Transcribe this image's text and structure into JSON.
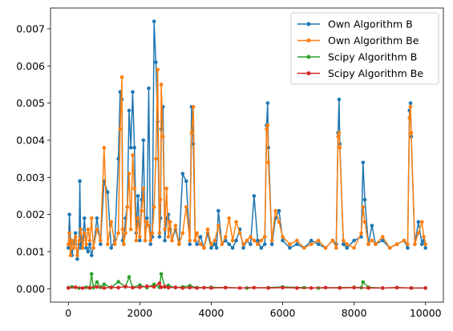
{
  "chart_data": {
    "type": "line",
    "title": "",
    "xlabel": "",
    "ylabel": "",
    "xlim": [
      -500,
      10500
    ],
    "ylim": [
      -0.00036,
      0.00756
    ],
    "x_ticks": [
      {
        "value": 0,
        "label": "0"
      },
      {
        "value": 2000,
        "label": "2000"
      },
      {
        "value": 4000,
        "label": "4000"
      },
      {
        "value": 6000,
        "label": "6000"
      },
      {
        "value": 8000,
        "label": "8000"
      },
      {
        "value": 10000,
        "label": "10000"
      }
    ],
    "y_ticks": [
      {
        "value": 0.0,
        "label": "0.000"
      },
      {
        "value": 0.001,
        "label": "0.001"
      },
      {
        "value": 0.002,
        "label": "0.002"
      },
      {
        "value": 0.003,
        "label": "0.003"
      },
      {
        "value": 0.004,
        "label": "0.004"
      },
      {
        "value": 0.005,
        "label": "0.005"
      },
      {
        "value": 0.006,
        "label": "0.006"
      },
      {
        "value": 0.007,
        "label": "0.007"
      }
    ],
    "grid": false,
    "legend": {
      "position": "top-right"
    },
    "series": [
      {
        "name": "Own Algorithm B",
        "color": "#1f77b4",
        "x": [
          0,
          30,
          60,
          100,
          150,
          200,
          250,
          300,
          320,
          350,
          400,
          450,
          500,
          550,
          600,
          650,
          700,
          800,
          900,
          1000,
          1100,
          1200,
          1300,
          1400,
          1450,
          1500,
          1520,
          1550,
          1600,
          1650,
          1700,
          1750,
          1800,
          1850,
          1900,
          1950,
          2000,
          2050,
          2100,
          2150,
          2200,
          2250,
          2300,
          2350,
          2400,
          2450,
          2500,
          2550,
          2580,
          2600,
          2650,
          2700,
          2750,
          2800,
          2850,
          2900,
          3000,
          3100,
          3200,
          3300,
          3400,
          3450,
          3500,
          3550,
          3600,
          3700,
          3800,
          3900,
          4000,
          4100,
          4150,
          4200,
          4300,
          4400,
          4500,
          4600,
          4700,
          4800,
          4900,
          5000,
          5100,
          5200,
          5300,
          5400,
          5500,
          5550,
          5580,
          5600,
          5700,
          5800,
          5900,
          6000,
          6200,
          6400,
          6600,
          6800,
          7000,
          7200,
          7400,
          7500,
          7550,
          7580,
          7600,
          7700,
          7800,
          8000,
          8200,
          8250,
          8300,
          8400,
          8500,
          8600,
          8800,
          9000,
          9200,
          9400,
          9500,
          9550,
          9580,
          9600,
          9700,
          9800,
          9900,
          9950,
          10000
        ],
        "y": [
          0.0011,
          0.002,
          0.0013,
          0.0009,
          0.0012,
          0.0015,
          0.0008,
          0.0012,
          0.0029,
          0.0011,
          0.0013,
          0.0019,
          0.0011,
          0.001,
          0.0012,
          0.0009,
          0.0011,
          0.0019,
          0.0012,
          0.0029,
          0.0026,
          0.0011,
          0.0013,
          0.0035,
          0.0053,
          0.0051,
          0.0013,
          0.0012,
          0.0019,
          0.0022,
          0.0048,
          0.0038,
          0.0053,
          0.0038,
          0.0015,
          0.0025,
          0.0013,
          0.0024,
          0.004,
          0.0013,
          0.0019,
          0.0054,
          0.0012,
          0.0014,
          0.0072,
          0.0061,
          0.0045,
          0.0014,
          0.0019,
          0.0043,
          0.0049,
          0.0013,
          0.0019,
          0.002,
          0.0016,
          0.0013,
          0.0016,
          0.0012,
          0.0031,
          0.0029,
          0.0012,
          0.0049,
          0.0039,
          0.0013,
          0.0012,
          0.0014,
          0.0011,
          0.0015,
          0.0011,
          0.0012,
          0.0011,
          0.0021,
          0.0012,
          0.0013,
          0.0012,
          0.0011,
          0.0013,
          0.0016,
          0.0011,
          0.0013,
          0.0012,
          0.0025,
          0.0013,
          0.0011,
          0.0012,
          0.0044,
          0.005,
          0.0038,
          0.0012,
          0.0019,
          0.0021,
          0.0013,
          0.0011,
          0.0012,
          0.0011,
          0.0013,
          0.0012,
          0.0011,
          0.0013,
          0.0012,
          0.0042,
          0.0051,
          0.0039,
          0.0012,
          0.0011,
          0.0013,
          0.0014,
          0.0034,
          0.0024,
          0.0012,
          0.0017,
          0.0012,
          0.0013,
          0.0011,
          0.0012,
          0.0013,
          0.0011,
          0.0048,
          0.005,
          0.0041,
          0.0012,
          0.0018,
          0.0012,
          0.0013,
          0.0011
        ]
      },
      {
        "name": "Own Algorithm Be",
        "color": "#ff7f0e",
        "x": [
          0,
          30,
          60,
          100,
          150,
          200,
          250,
          300,
          350,
          400,
          450,
          500,
          550,
          600,
          650,
          700,
          800,
          900,
          1000,
          1100,
          1200,
          1300,
          1400,
          1450,
          1500,
          1520,
          1550,
          1600,
          1650,
          1700,
          1750,
          1800,
          1850,
          1900,
          1950,
          2000,
          2050,
          2100,
          2150,
          2200,
          2250,
          2300,
          2350,
          2400,
          2450,
          2500,
          2550,
          2580,
          2600,
          2650,
          2700,
          2750,
          2800,
          2850,
          2900,
          3000,
          3100,
          3200,
          3300,
          3400,
          3450,
          3500,
          3550,
          3600,
          3700,
          3800,
          3900,
          4000,
          4100,
          4200,
          4300,
          4400,
          4500,
          4600,
          4700,
          4800,
          4900,
          5000,
          5100,
          5200,
          5300,
          5400,
          5500,
          5550,
          5580,
          5600,
          5700,
          5800,
          5900,
          6000,
          6200,
          6400,
          6600,
          6800,
          7000,
          7200,
          7400,
          7500,
          7550,
          7580,
          7600,
          7700,
          7800,
          8000,
          8200,
          8250,
          8300,
          8400,
          8500,
          8600,
          8800,
          9000,
          9200,
          9400,
          9500,
          9550,
          9580,
          9600,
          9700,
          9800,
          9900,
          9950,
          10000
        ],
        "y": [
          0.0012,
          0.0015,
          0.0009,
          0.0013,
          0.0011,
          0.0014,
          0.0009,
          0.0013,
          0.0016,
          0.0011,
          0.0015,
          0.0012,
          0.0016,
          0.0013,
          0.0019,
          0.0011,
          0.0016,
          0.0013,
          0.0038,
          0.0012,
          0.0018,
          0.0012,
          0.0015,
          0.0043,
          0.0057,
          0.0016,
          0.0012,
          0.0015,
          0.0022,
          0.0031,
          0.0016,
          0.0036,
          0.0027,
          0.0013,
          0.0019,
          0.0014,
          0.0021,
          0.0027,
          0.0013,
          0.0018,
          0.0017,
          0.0013,
          0.0015,
          0.0022,
          0.0035,
          0.0059,
          0.0015,
          0.0024,
          0.0055,
          0.0041,
          0.0016,
          0.0027,
          0.0014,
          0.0018,
          0.0013,
          0.0017,
          0.0012,
          0.0015,
          0.0022,
          0.0013,
          0.0042,
          0.0049,
          0.0013,
          0.0015,
          0.0012,
          0.0011,
          0.0016,
          0.0012,
          0.0013,
          0.0017,
          0.0012,
          0.0014,
          0.0019,
          0.0013,
          0.0018,
          0.0015,
          0.0012,
          0.0013,
          0.0014,
          0.0013,
          0.0012,
          0.0013,
          0.0014,
          0.0043,
          0.0044,
          0.0034,
          0.0013,
          0.0021,
          0.0018,
          0.0014,
          0.0012,
          0.0013,
          0.0011,
          0.0012,
          0.0013,
          0.0011,
          0.0013,
          0.0011,
          0.0041,
          0.0042,
          0.0038,
          0.0013,
          0.0012,
          0.0011,
          0.0015,
          0.0022,
          0.0018,
          0.0012,
          0.0013,
          0.0012,
          0.0014,
          0.0011,
          0.0012,
          0.0013,
          0.0012,
          0.0046,
          0.0049,
          0.0042,
          0.0012,
          0.0015,
          0.0018,
          0.0014,
          0.0012
        ]
      },
      {
        "name": "Scipy Algorithm B",
        "color": "#2ca02c",
        "x": [
          0,
          100,
          300,
          500,
          600,
          650,
          700,
          800,
          900,
          1000,
          1200,
          1400,
          1600,
          1700,
          1800,
          2000,
          2200,
          2400,
          2550,
          2600,
          2700,
          2800,
          3000,
          3200,
          3400,
          3600,
          4000,
          4400,
          5000,
          5600,
          6000,
          6600,
          7000,
          7600,
          8000,
          8200,
          8250,
          8400,
          8800,
          9200,
          9600,
          10000
        ],
        "y": [
          3e-05,
          5e-05,
          2e-05,
          4e-05,
          2e-05,
          0.0004,
          3e-05,
          0.00018,
          4e-05,
          0.00012,
          3e-05,
          0.00019,
          5e-05,
          0.00032,
          4e-05,
          0.0001,
          3e-05,
          0.00012,
          4e-05,
          0.0004,
          5e-05,
          9e-05,
          3e-05,
          5e-05,
          8e-05,
          3e-05,
          4e-05,
          3e-05,
          2e-05,
          3e-05,
          5e-05,
          3e-05,
          2e-05,
          3e-05,
          4e-05,
          3e-05,
          0.00018,
          4e-05,
          2e-05,
          3e-05,
          2e-05,
          2e-05
        ]
      },
      {
        "name": "Scipy Algorithm Be",
        "color": "#d62728",
        "x": [
          0,
          200,
          400,
          600,
          800,
          1000,
          1200,
          1400,
          1600,
          1800,
          2000,
          2200,
          2400,
          2550,
          2600,
          2700,
          2800,
          3000,
          3200,
          3400,
          3600,
          3800,
          4000,
          4400,
          4800,
          5200,
          5600,
          6000,
          6400,
          6800,
          7200,
          7600,
          8000,
          8400,
          8800,
          9200,
          9600,
          10000
        ],
        "y": [
          2e-05,
          4e-05,
          2e-05,
          3e-05,
          5e-05,
          2e-05,
          4e-05,
          3e-05,
          6e-05,
          3e-05,
          4e-05,
          7e-05,
          5e-05,
          0.00015,
          4e-05,
          6e-05,
          3e-05,
          4e-05,
          2e-05,
          3e-05,
          2e-05,
          3e-05,
          2e-05,
          3e-05,
          2e-05,
          3e-05,
          2e-05,
          3e-05,
          2e-05,
          2e-05,
          3e-05,
          2e-05,
          3e-05,
          2e-05,
          2e-05,
          3e-05,
          2e-05,
          2e-05
        ]
      }
    ]
  }
}
